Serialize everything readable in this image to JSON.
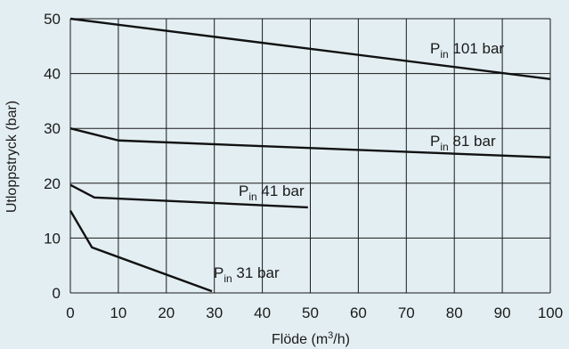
{
  "chart_data": {
    "type": "line",
    "title": "",
    "xlabel": "Flöde (m³/h)",
    "xlabel_base": "Flöde (m",
    "xlabel_sup": "3",
    "xlabel_tail": "/h)",
    "ylabel": "Utloppstryck (bar)",
    "xlim": [
      0,
      100
    ],
    "ylim": [
      0,
      50
    ],
    "xticks": [
      "0",
      "10",
      "20",
      "30",
      "40",
      "50",
      "60",
      "70",
      "80",
      "90",
      "100"
    ],
    "yticks": [
      "0",
      "10",
      "20",
      "30",
      "40",
      "50"
    ],
    "grid": true,
    "series": [
      {
        "label_main": "P",
        "label_sub": "in",
        "label_tail": " 101 bar",
        "points": [
          [
            0,
            50
          ],
          [
            100,
            39
          ]
        ]
      },
      {
        "label_main": "P",
        "label_sub": "in",
        "label_tail": " 81 bar",
        "points": [
          [
            0,
            30
          ],
          [
            10,
            27.8
          ],
          [
            100,
            24.7
          ]
        ]
      },
      {
        "label_main": "P",
        "label_sub": "in",
        "label_tail": " 41 bar",
        "points": [
          [
            0,
            19.7
          ],
          [
            5,
            17.4
          ],
          [
            49.5,
            15.6
          ]
        ]
      },
      {
        "label_main": "P",
        "label_sub": "in",
        "label_tail": " 31 bar",
        "points": [
          [
            0,
            15
          ],
          [
            4.5,
            8.3
          ],
          [
            29.5,
            0.3
          ]
        ]
      }
    ]
  }
}
